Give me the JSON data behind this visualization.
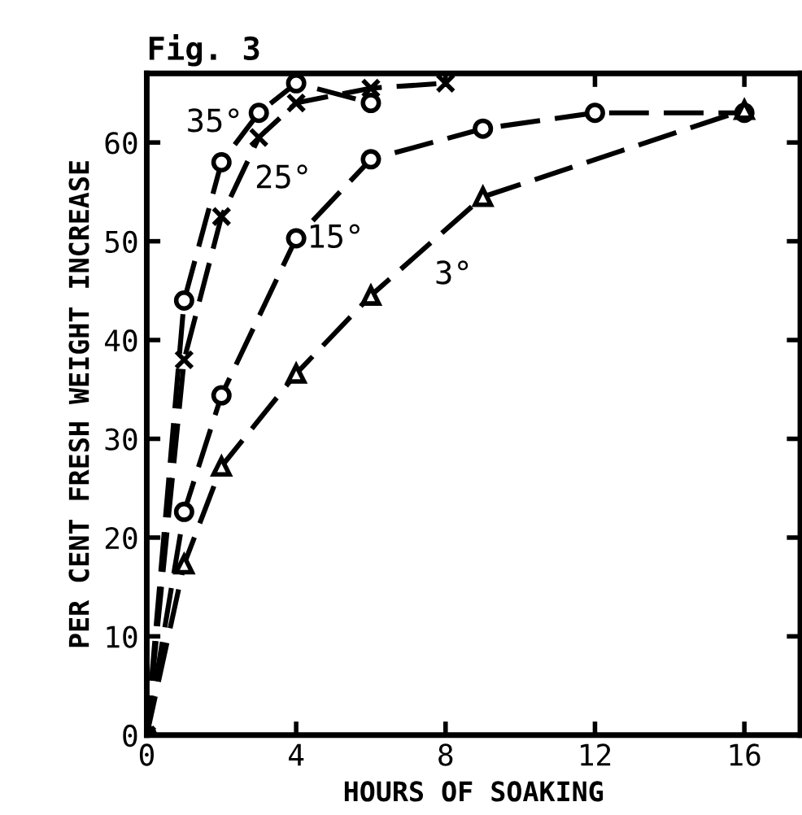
{
  "chart_data": {
    "type": "line",
    "title": "Fig. 3",
    "xlabel": "HOURS OF SOAKING",
    "ylabel": "PER CENT FRESH WEIGHT INCREASE",
    "xlim": [
      0,
      17.5
    ],
    "ylim": [
      0,
      67
    ],
    "xticks": [
      0,
      4,
      8,
      12,
      16
    ],
    "yticks": [
      0,
      10,
      20,
      30,
      40,
      50,
      60
    ],
    "grid": false,
    "line_style": "dashed",
    "series": [
      {
        "name": "35°",
        "color": "#000000",
        "marker": "circle",
        "x": [
          0,
          1,
          2,
          3,
          4,
          6
        ],
        "values": [
          0,
          44,
          58,
          63,
          66,
          64
        ]
      },
      {
        "name": "25°",
        "color": "#000000",
        "marker": "cross",
        "x": [
          0,
          1,
          2,
          3,
          4,
          6,
          8
        ],
        "values": [
          0,
          38,
          52.5,
          60.5,
          64,
          65.5,
          66
        ]
      },
      {
        "name": "15°",
        "color": "#000000",
        "marker": "circle",
        "x": [
          0,
          1,
          2,
          4,
          6,
          9,
          12,
          16
        ],
        "values": [
          0,
          22.6,
          34.4,
          50.3,
          58.3,
          61.4,
          63,
          63
        ]
      },
      {
        "name": "3°",
        "color": "#000000",
        "marker": "triangle",
        "x": [
          0,
          1,
          2,
          4,
          6,
          9,
          16
        ],
        "values": [
          0,
          17.3,
          27.2,
          36.6,
          44.5,
          54.5,
          63.3
        ]
      }
    ]
  }
}
